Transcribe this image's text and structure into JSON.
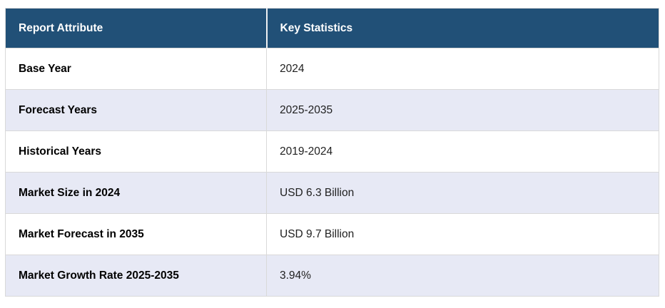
{
  "chart_data": {
    "type": "table",
    "columns": [
      "Report Attribute",
      "Key Statistics"
    ],
    "rows": [
      [
        "Base Year",
        "2024"
      ],
      [
        "Forecast Years",
        "2025-2035"
      ],
      [
        "Historical Years",
        "2019-2024"
      ],
      [
        "Market Size in 2024",
        "USD 6.3 Billion"
      ],
      [
        "Market Forecast in 2035",
        "USD 9.7 Billion"
      ],
      [
        "Market Growth Rate 2025-2035",
        "3.94%"
      ]
    ],
    "layout": {
      "legend": "none",
      "grid": "cell-borders",
      "striped_rows": true
    },
    "colors": {
      "header_bg": "#215077",
      "header_text": "#ffffff",
      "row_bg": "#ffffff",
      "row_alt_bg": "#e7e9f5",
      "border": "#d9d9d9",
      "attribute_text": "#000000",
      "value_text": "#1f1f1f"
    }
  }
}
